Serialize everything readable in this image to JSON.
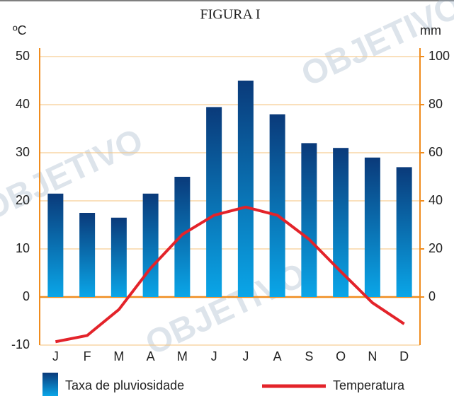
{
  "chart_data": {
    "type": "bar",
    "title": "FIGURA I",
    "watermark": "OBJETIVO",
    "ylabel": "ºC",
    "y2label": "mm",
    "categories": [
      "J",
      "F",
      "M",
      "A",
      "M",
      "J",
      "J",
      "A",
      "S",
      "O",
      "N",
      "D"
    ],
    "series": [
      {
        "name": "Taxa de pluviosidade",
        "type": "bar",
        "axis": "y2",
        "color": "#0a3a7a",
        "color2": "#0aa6e8",
        "values": [
          43,
          35,
          33,
          43,
          50,
          79,
          90,
          76,
          64,
          62,
          58,
          54
        ]
      },
      {
        "name": "Temperatura",
        "type": "line",
        "axis": "y",
        "color": "#e3232a",
        "values": [
          -9.3,
          -8,
          -2.6,
          6,
          13,
          17,
          18.7,
          17,
          12,
          5.3,
          -1.2,
          -5.6
        ]
      }
    ],
    "ylim": [
      -10,
      50
    ],
    "yticks": [
      -10,
      0,
      10,
      20,
      30,
      40,
      50
    ],
    "y2lim": [
      -20,
      100
    ],
    "y2ticks": [
      0,
      20,
      40,
      60,
      80,
      100
    ],
    "grid": true,
    "grid_color": "#f5c27a",
    "axis_color": "#f08c1e",
    "legend": "bottom"
  }
}
